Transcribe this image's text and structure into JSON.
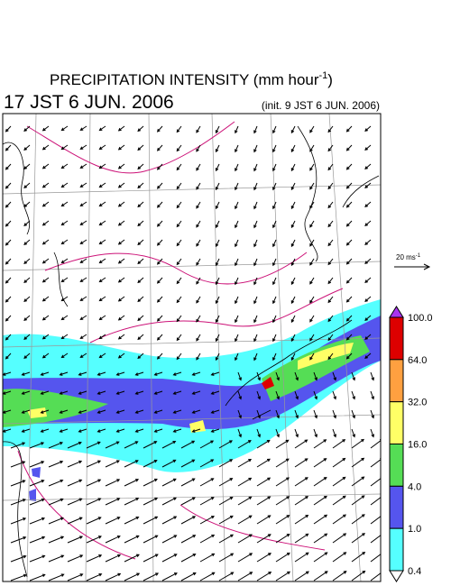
{
  "header": {
    "title": "PRECIPITATION INTENSITY (mm hour",
    "title_sup": "-1",
    "title_end": ")",
    "valid_time": "17 JST 6 JUN. 2006",
    "init_time": "(init. 9 JST 6 JUN. 2006)"
  },
  "vector_scale": {
    "label": "20 ms",
    "sup": "-1"
  },
  "legend": {
    "levels": [
      {
        "value": 100,
        "label": "100.0"
      },
      {
        "value": 64,
        "label": "64.0"
      },
      {
        "value": 32,
        "label": "32.0"
      },
      {
        "value": 16,
        "label": "16.0"
      },
      {
        "value": 4,
        "label": "4.0"
      },
      {
        "value": 1,
        "label": "1.0"
      },
      {
        "value": 0.4,
        "label": "0.4"
      }
    ],
    "colors": [
      "#dd0000",
      "#ffa040",
      "#ffff66",
      "#55dd55",
      "#5555ee",
      "#55ffff"
    ],
    "over_color": "#aa33ee",
    "under_color": "#ffffff"
  }
}
